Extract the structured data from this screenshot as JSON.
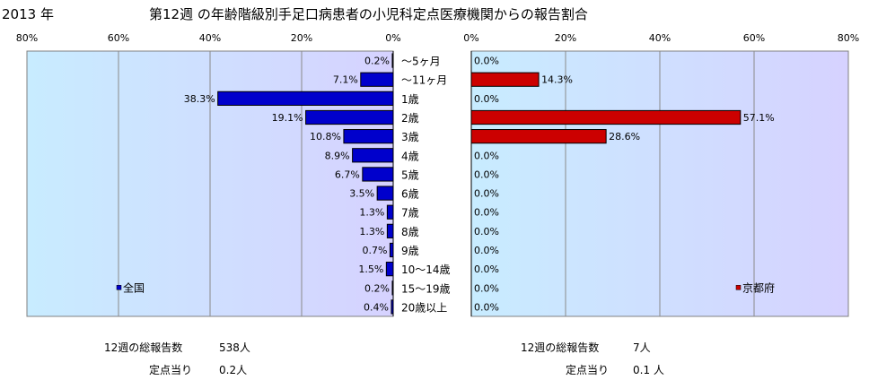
{
  "header": {
    "year": "2013 年",
    "title": "第12週 の年齢階級別手足口病患者の小児科定点医療機関からの報告割合"
  },
  "chart_data": [
    {
      "type": "bar",
      "orientation": "horizontal",
      "direction": "right-to-left",
      "panel": "left",
      "categories": [
        "～5ヶ月",
        "～11ヶ月",
        "1歳",
        "2歳",
        "3歳",
        "4歳",
        "5歳",
        "6歳",
        "7歳",
        "8歳",
        "9歳",
        "10～14歳",
        "15～19歳",
        "20歳以上"
      ],
      "series": [
        {
          "name": "全国",
          "color": "#0000cc",
          "values": [
            0.2,
            7.1,
            38.3,
            19.1,
            10.8,
            8.9,
            6.7,
            3.5,
            1.3,
            1.3,
            0.7,
            1.5,
            0.2,
            0.4
          ],
          "labels": [
            "0.2%",
            "7.1%",
            "38.3%",
            "19.1%",
            "10.8%",
            "8.9%",
            "6.7%",
            "3.5%",
            "1.3%",
            "1.3%",
            "0.7%",
            "1.5%",
            "0.2%",
            "0.4%"
          ]
        }
      ],
      "xlim": [
        0,
        80
      ],
      "ticks": [
        "80%",
        "60%",
        "40%",
        "20%",
        "0%"
      ],
      "grid": true,
      "legend": "bottom-left"
    },
    {
      "type": "bar",
      "orientation": "horizontal",
      "direction": "left-to-right",
      "panel": "right",
      "categories": [
        "～5ヶ月",
        "～11ヶ月",
        "1歳",
        "2歳",
        "3歳",
        "4歳",
        "5歳",
        "6歳",
        "7歳",
        "8歳",
        "9歳",
        "10～14歳",
        "15～19歳",
        "20歳以上"
      ],
      "series": [
        {
          "name": "京都府",
          "color": "#cc0000",
          "values": [
            0.0,
            14.3,
            0.0,
            57.1,
            28.6,
            0.0,
            0.0,
            0.0,
            0.0,
            0.0,
            0.0,
            0.0,
            0.0,
            0.0
          ],
          "labels": [
            "0.0%",
            "14.3%",
            "0.0%",
            "57.1%",
            "28.6%",
            "0.0%",
            "0.0%",
            "0.0%",
            "0.0%",
            "0.0%",
            "0.0%",
            "0.0%",
            "0.0%",
            "0.0%"
          ]
        }
      ],
      "xlim": [
        0,
        80
      ],
      "ticks": [
        "0%",
        "20%",
        "40%",
        "60%",
        "80%"
      ],
      "grid": true,
      "legend": "bottom-right"
    }
  ],
  "footer": {
    "left": {
      "reports_label": "12週の総報告数",
      "reports_value": "538人",
      "per_label": "定点当り",
      "per_value": "0.2人"
    },
    "right": {
      "reports_label": "12週の総報告数",
      "reports_value": "7人",
      "per_label": "定点当り",
      "per_value": "0.1 人"
    }
  }
}
